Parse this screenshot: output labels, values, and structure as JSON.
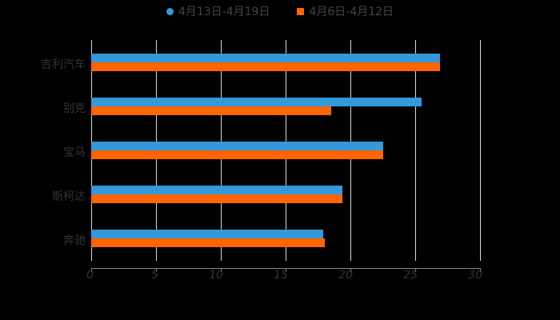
{
  "chart_data": {
    "type": "bar",
    "orientation": "horizontal",
    "title": "",
    "xlabel": "",
    "ylabel": "",
    "categories": [
      "吉利汽车",
      "别克",
      "宝马",
      "斯柯达",
      "奔驰"
    ],
    "series": [
      {
        "name": "4月13日-4月19日",
        "color": "#3498db",
        "values": [
          26.9,
          25.5,
          22.5,
          19.4,
          17.9
        ]
      },
      {
        "name": "4月6日-4月12日",
        "color": "#ff6600",
        "values": [
          26.9,
          18.5,
          22.5,
          19.4,
          18.0
        ]
      }
    ],
    "xlim": [
      0,
      30
    ],
    "xticks": [
      "0",
      "5",
      "10",
      "15",
      "20",
      "25",
      "30"
    ],
    "grid": true,
    "legend_position": "top"
  },
  "legend": {
    "series0": "4月13日-4月19日",
    "series1": "4月6日-4月12日"
  }
}
